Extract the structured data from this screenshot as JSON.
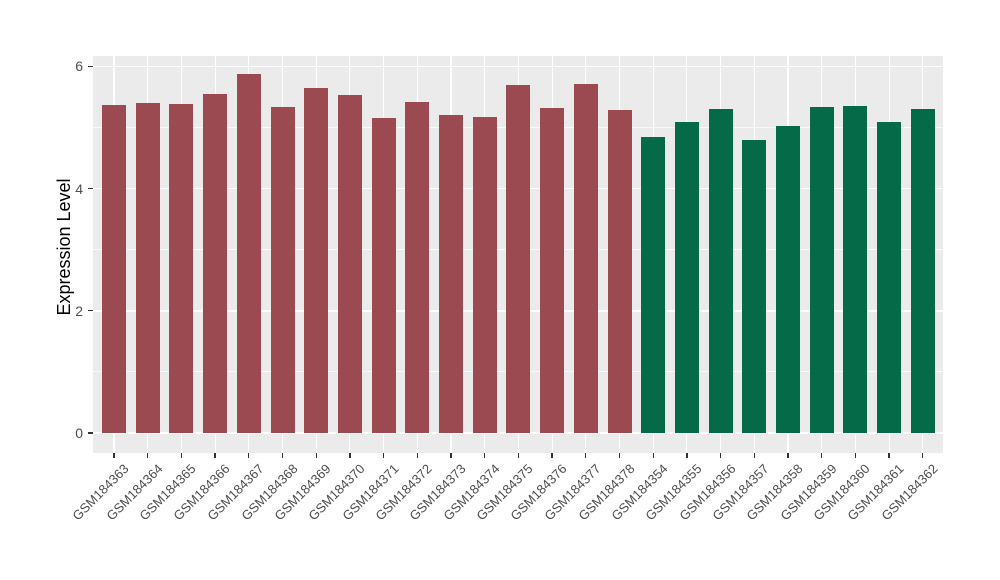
{
  "figure": {
    "background_color": "#FFFFFF"
  },
  "panel": {
    "background_color": "#EBEBEB",
    "gridline_color": "#FFFFFF"
  },
  "axis_colors": {
    "tick_mark_color": "#333333",
    "tick_label_color": "#4D4D4D"
  },
  "chart_data": {
    "type": "bar",
    "title": "",
    "xlabel": "",
    "ylabel": "Expression Level",
    "ylim": [
      0,
      6.2
    ],
    "yticks": [
      0,
      2,
      4,
      6
    ],
    "yticks_minor": [
      1,
      3,
      5
    ],
    "grid": true,
    "legend": false,
    "x_label_angle_degrees": 45,
    "categories": [
      "GSM184363",
      "GSM184364",
      "GSM184365",
      "GSM184366",
      "GSM184367",
      "GSM184368",
      "GSM184369",
      "GSM184370",
      "GSM184371",
      "GSM184372",
      "GSM184373",
      "GSM184374",
      "GSM184375",
      "GSM184376",
      "GSM184377",
      "GSM184378",
      "GSM184354",
      "GSM184355",
      "GSM184356",
      "GSM184357",
      "GSM184358",
      "GSM184359",
      "GSM184360",
      "GSM184361",
      "GSM184362"
    ],
    "values": [
      5.37,
      5.4,
      5.39,
      5.55,
      5.87,
      5.34,
      5.64,
      5.54,
      5.15,
      5.41,
      5.21,
      5.18,
      5.69,
      5.32,
      5.71,
      5.28,
      4.85,
      5.09,
      5.3,
      4.8,
      5.03,
      5.34,
      5.36,
      5.09,
      5.31
    ],
    "colors": [
      "#9C4A52",
      "#9C4A52",
      "#9C4A52",
      "#9C4A52",
      "#9C4A52",
      "#9C4A52",
      "#9C4A52",
      "#9C4A52",
      "#9C4A52",
      "#9C4A52",
      "#9C4A52",
      "#9C4A52",
      "#9C4A52",
      "#9C4A52",
      "#9C4A52",
      "#9C4A52",
      "#046A48",
      "#046A48",
      "#046A48",
      "#046A48",
      "#046A48",
      "#046A48",
      "#046A48",
      "#046A48",
      "#046A48"
    ],
    "color_groups": [
      {
        "color": "#9C4A52",
        "first_category": "GSM184363",
        "last_category": "GSM184378",
        "count": 16
      },
      {
        "color": "#046A48",
        "first_category": "GSM184354",
        "last_category": "GSM184362",
        "count": 9
      }
    ]
  }
}
